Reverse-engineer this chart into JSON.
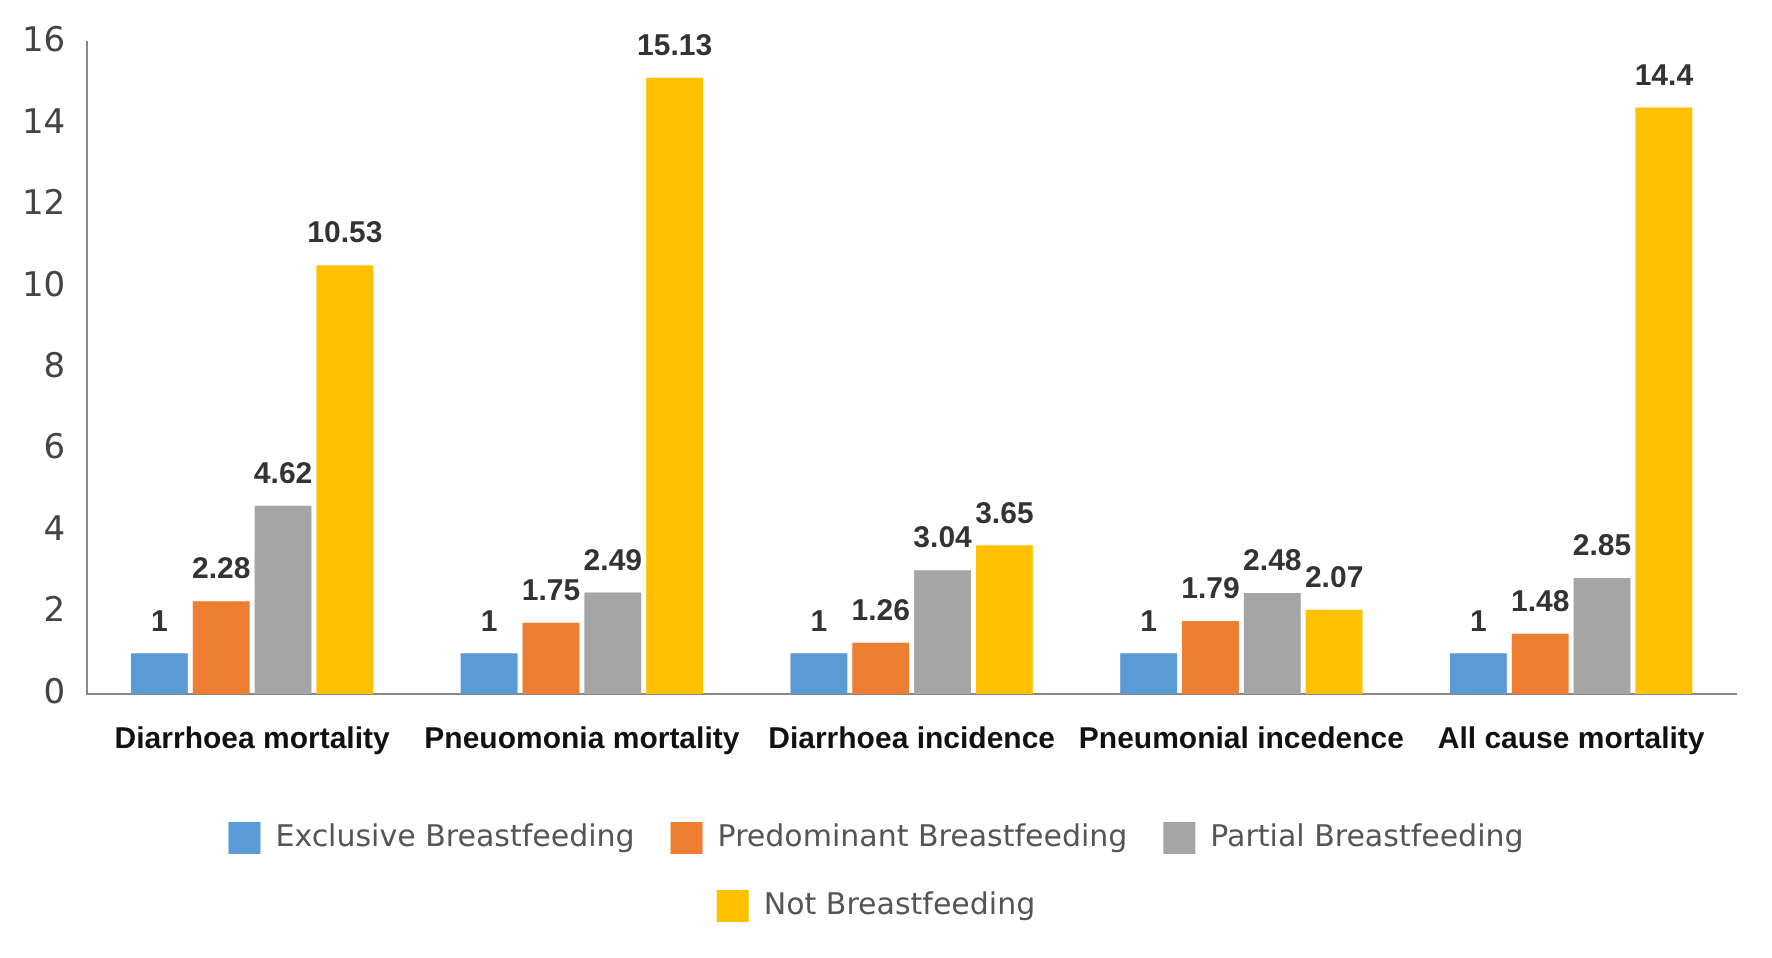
{
  "chart_data": {
    "type": "bar",
    "categories": [
      "Diarrhoea mortality",
      "Pneuomonia mortality",
      "Diarrhoea incidence",
      "Pneumonial incedence",
      "All cause mortality"
    ],
    "series": [
      {
        "name": "Exclusive Breastfeeding",
        "color": "#5b9bd5",
        "values": [
          1,
          1,
          1,
          1,
          1
        ]
      },
      {
        "name": "Predominant Breastfeeding",
        "color": "#ed7d31",
        "values": [
          2.28,
          1.75,
          1.26,
          1.79,
          1.48
        ]
      },
      {
        "name": "Partial Breastfeeding",
        "color": "#a5a5a5",
        "values": [
          4.62,
          2.49,
          3.04,
          2.48,
          2.85
        ]
      },
      {
        "name": "Not Breastfeeding",
        "color": "#ffc000",
        "values": [
          10.53,
          15.13,
          3.65,
          2.07,
          14.4
        ]
      }
    ],
    "ylim": [
      0,
      16
    ],
    "yticks": [
      0,
      2,
      4,
      6,
      8,
      10,
      12,
      14,
      16
    ],
    "grid": false,
    "legend": "bottom",
    "data_labels": true
  }
}
